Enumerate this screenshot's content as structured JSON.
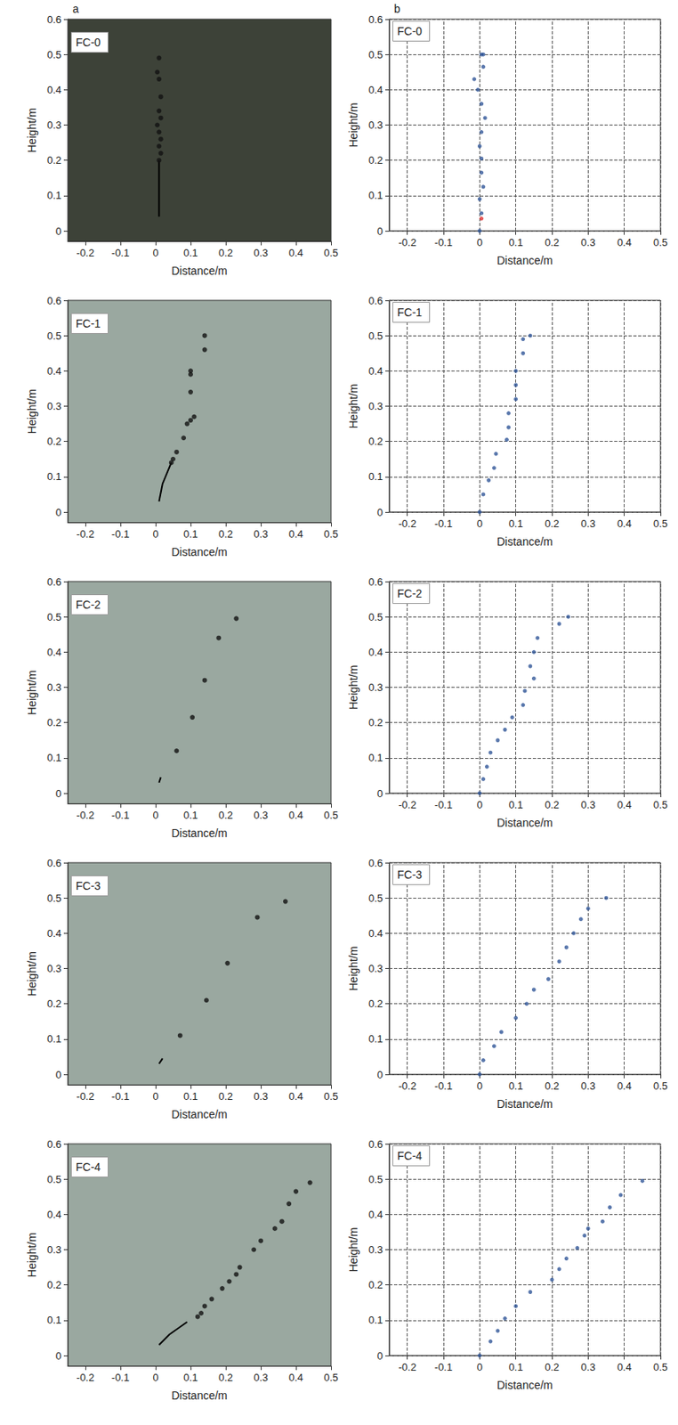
{
  "chart_data": [
    {
      "type": "scatter",
      "panel_label": "a",
      "title": "FC-0",
      "xlabel": "Distance/m",
      "ylabel": "Height/m",
      "xlim": [
        -0.25,
        0.5
      ],
      "xticks": [
        -0.2,
        -0.1,
        0,
        0.1,
        0.2,
        0.3,
        0.4,
        0.5
      ],
      "ylim": [
        -0.03,
        0.6
      ],
      "yticks": [
        0,
        0.1,
        0.2,
        0.3,
        0.4,
        0.5,
        0.6
      ],
      "grid": false,
      "series": [
        {
          "type": "line",
          "color": "#000000",
          "line_style": "solid",
          "x": [
            0.01,
            0.01,
            0.01
          ],
          "values": [
            0.04,
            0.12,
            0.2
          ]
        },
        {
          "type": "scatter",
          "color": "#111111",
          "marker": "circle",
          "x": [
            0.01,
            0.005,
            0.01,
            0.015,
            0.01,
            0.015,
            0.005,
            0.01,
            0.015,
            0.01,
            0.015,
            0.01
          ],
          "values": [
            0.49,
            0.45,
            0.43,
            0.38,
            0.34,
            0.32,
            0.3,
            0.28,
            0.26,
            0.24,
            0.22,
            0.2
          ]
        }
      ]
    },
    {
      "type": "scatter",
      "panel_label": "b",
      "title": "FC-0",
      "xlabel": "Distance/m",
      "ylabel": "Height/m",
      "xlim": [
        -0.25,
        0.5
      ],
      "xticks": [
        -0.2,
        -0.1,
        0,
        0.1,
        0.2,
        0.3,
        0.4,
        0.5
      ],
      "ylim": [
        0,
        0.6
      ],
      "yticks": [
        0,
        0.1,
        0.2,
        0.3,
        0.4,
        0.5,
        0.6
      ],
      "grid": true,
      "series": [
        {
          "type": "scatter",
          "color": "#2f5597",
          "marker": "circle",
          "x": [
            0,
            0.005,
            0,
            0.01,
            0.005,
            0.005,
            0,
            0.005,
            0.015,
            0.005,
            -0.005,
            -0.015,
            0.01,
            0.005,
            0.01
          ],
          "values": [
            0,
            0.05,
            0.09,
            0.125,
            0.165,
            0.205,
            0.24,
            0.28,
            0.32,
            0.36,
            0.4,
            0.43,
            0.465,
            0.5,
            0.5
          ]
        },
        {
          "type": "scatter",
          "color": "#e03030",
          "marker": "circle",
          "x": [
            0.005
          ],
          "values": [
            0.035
          ]
        }
      ]
    },
    {
      "type": "scatter",
      "title": "FC-1",
      "xlabel": "Distance/m",
      "ylabel": "Height/m",
      "xlim": [
        -0.25,
        0.5
      ],
      "xticks": [
        -0.2,
        -0.1,
        0,
        0.1,
        0.2,
        0.3,
        0.4,
        0.5
      ],
      "ylim": [
        -0.03,
        0.6
      ],
      "yticks": [
        0,
        0.1,
        0.2,
        0.3,
        0.4,
        0.5,
        0.6
      ],
      "grid": false,
      "series": [
        {
          "type": "line",
          "color": "#000000",
          "line_style": "solid",
          "x": [
            0.01,
            0.02,
            0.045
          ],
          "values": [
            0.03,
            0.08,
            0.14
          ]
        },
        {
          "type": "scatter",
          "color": "#111111",
          "marker": "circle",
          "x": [
            0.14,
            0.14,
            0.1,
            0.1,
            0.1,
            0.11,
            0.1,
            0.09,
            0.08,
            0.06,
            0.05,
            0.045
          ],
          "values": [
            0.5,
            0.46,
            0.4,
            0.39,
            0.34,
            0.27,
            0.26,
            0.25,
            0.21,
            0.17,
            0.15,
            0.14
          ]
        }
      ]
    },
    {
      "type": "scatter",
      "title": "FC-1",
      "xlabel": "Distance/m",
      "ylabel": "Height/m",
      "xlim": [
        -0.25,
        0.5
      ],
      "xticks": [
        -0.2,
        -0.1,
        0,
        0.1,
        0.2,
        0.3,
        0.4,
        0.5
      ],
      "ylim": [
        0,
        0.6
      ],
      "yticks": [
        0,
        0.1,
        0.2,
        0.3,
        0.4,
        0.5,
        0.6
      ],
      "grid": true,
      "series": [
        {
          "type": "scatter",
          "color": "#2f5597",
          "marker": "circle",
          "x": [
            0,
            0.01,
            0.025,
            0.04,
            0.045,
            0.075,
            0.08,
            0.08,
            0.1,
            0.1,
            0.1,
            0.12,
            0.12,
            0.14
          ],
          "values": [
            0,
            0.05,
            0.09,
            0.125,
            0.165,
            0.205,
            0.24,
            0.28,
            0.32,
            0.36,
            0.4,
            0.45,
            0.49,
            0.5
          ]
        }
      ]
    },
    {
      "type": "scatter",
      "title": "FC-2",
      "xlabel": "Distance/m",
      "ylabel": "Height/m",
      "xlim": [
        -0.25,
        0.5
      ],
      "xticks": [
        -0.2,
        -0.1,
        0,
        0.1,
        0.2,
        0.3,
        0.4,
        0.5
      ],
      "ylim": [
        -0.03,
        0.6
      ],
      "yticks": [
        0,
        0.1,
        0.2,
        0.3,
        0.4,
        0.5,
        0.6
      ],
      "grid": false,
      "series": [
        {
          "type": "line",
          "color": "#000000",
          "line_style": "solid",
          "x": [
            0.01,
            0.015
          ],
          "values": [
            0.03,
            0.045
          ]
        },
        {
          "type": "scatter",
          "color": "#111111",
          "marker": "circle",
          "x": [
            0.23,
            0.18,
            0.14,
            0.105,
            0.06
          ],
          "values": [
            0.495,
            0.44,
            0.32,
            0.215,
            0.12
          ]
        }
      ]
    },
    {
      "type": "scatter",
      "title": "FC-2",
      "xlabel": "Distance/m",
      "ylabel": "Height/m",
      "xlim": [
        -0.25,
        0.5
      ],
      "xticks": [
        -0.2,
        -0.1,
        0,
        0.1,
        0.2,
        0.3,
        0.4,
        0.5
      ],
      "ylim": [
        0,
        0.6
      ],
      "yticks": [
        0,
        0.1,
        0.2,
        0.3,
        0.4,
        0.5,
        0.6
      ],
      "grid": true,
      "series": [
        {
          "type": "scatter",
          "color": "#2f5597",
          "marker": "circle",
          "x": [
            0,
            0.01,
            0.02,
            0.03,
            0.05,
            0.07,
            0.09,
            0.12,
            0.125,
            0.15,
            0.14,
            0.15,
            0.16,
            0.22,
            0.245
          ],
          "values": [
            0,
            0.04,
            0.075,
            0.115,
            0.15,
            0.18,
            0.215,
            0.25,
            0.29,
            0.325,
            0.36,
            0.4,
            0.44,
            0.48,
            0.5
          ]
        }
      ]
    },
    {
      "type": "scatter",
      "title": "FC-3",
      "xlabel": "Distance/m",
      "ylabel": "Height/m",
      "xlim": [
        -0.25,
        0.5
      ],
      "xticks": [
        -0.2,
        -0.1,
        0,
        0.1,
        0.2,
        0.3,
        0.4,
        0.5
      ],
      "ylim": [
        -0.03,
        0.6
      ],
      "yticks": [
        0,
        0.1,
        0.2,
        0.3,
        0.4,
        0.5,
        0.6
      ],
      "grid": false,
      "series": [
        {
          "type": "line",
          "color": "#000000",
          "line_style": "solid",
          "x": [
            0.01,
            0.02
          ],
          "values": [
            0.03,
            0.045
          ]
        },
        {
          "type": "scatter",
          "color": "#111111",
          "marker": "circle",
          "x": [
            0.37,
            0.29,
            0.205,
            0.145,
            0.07
          ],
          "values": [
            0.49,
            0.445,
            0.315,
            0.21,
            0.11
          ]
        }
      ]
    },
    {
      "type": "scatter",
      "title": "FC-3",
      "xlabel": "Distance/m",
      "ylabel": "Height/m",
      "xlim": [
        -0.25,
        0.5
      ],
      "xticks": [
        -0.2,
        -0.1,
        0,
        0.1,
        0.2,
        0.3,
        0.4,
        0.5
      ],
      "ylim": [
        0,
        0.6
      ],
      "yticks": [
        0,
        0.1,
        0.2,
        0.3,
        0.4,
        0.5,
        0.6
      ],
      "grid": true,
      "series": [
        {
          "type": "scatter",
          "color": "#2f5597",
          "marker": "circle",
          "x": [
            0,
            0.01,
            0.04,
            0.06,
            0.1,
            0.13,
            0.15,
            0.19,
            0.22,
            0.24,
            0.26,
            0.28,
            0.3,
            0.35
          ],
          "values": [
            0,
            0.04,
            0.08,
            0.12,
            0.16,
            0.2,
            0.24,
            0.27,
            0.32,
            0.36,
            0.4,
            0.44,
            0.47,
            0.5
          ]
        }
      ]
    },
    {
      "type": "scatter",
      "title": "FC-4",
      "xlabel": "Distance/m",
      "ylabel": "Height/m",
      "xlim": [
        -0.25,
        0.5
      ],
      "xticks": [
        -0.2,
        -0.1,
        0,
        0.1,
        0.2,
        0.3,
        0.4,
        0.5
      ],
      "ylim": [
        -0.03,
        0.6
      ],
      "yticks": [
        0,
        0.1,
        0.2,
        0.3,
        0.4,
        0.5,
        0.6
      ],
      "grid": false,
      "series": [
        {
          "type": "line",
          "color": "#000000",
          "line_style": "solid",
          "x": [
            0.01,
            0.04,
            0.09
          ],
          "values": [
            0.03,
            0.06,
            0.095
          ]
        },
        {
          "type": "scatter",
          "color": "#111111",
          "marker": "circle",
          "x": [
            0.44,
            0.4,
            0.38,
            0.36,
            0.34,
            0.3,
            0.28,
            0.24,
            0.23,
            0.21,
            0.19,
            0.16,
            0.14,
            0.13,
            0.12
          ],
          "values": [
            0.49,
            0.465,
            0.43,
            0.38,
            0.36,
            0.325,
            0.3,
            0.25,
            0.23,
            0.21,
            0.19,
            0.16,
            0.14,
            0.12,
            0.11
          ]
        }
      ]
    },
    {
      "type": "scatter",
      "title": "FC-4",
      "xlabel": "Distance/m",
      "ylabel": "Height/m",
      "xlim": [
        -0.25,
        0.5
      ],
      "xticks": [
        -0.2,
        -0.1,
        0,
        0.1,
        0.2,
        0.3,
        0.4,
        0.5
      ],
      "ylim": [
        0,
        0.6
      ],
      "yticks": [
        0,
        0.1,
        0.2,
        0.3,
        0.4,
        0.5,
        0.6
      ],
      "grid": true,
      "series": [
        {
          "type": "scatter",
          "color": "#2f5597",
          "marker": "circle",
          "x": [
            0,
            0.03,
            0.05,
            0.07,
            0.1,
            0.14,
            0.2,
            0.22,
            0.24,
            0.27,
            0.29,
            0.3,
            0.34,
            0.36,
            0.39,
            0.45
          ],
          "values": [
            0,
            0.04,
            0.07,
            0.105,
            0.14,
            0.18,
            0.215,
            0.245,
            0.275,
            0.305,
            0.34,
            0.36,
            0.38,
            0.42,
            0.455,
            0.495
          ]
        }
      ]
    }
  ]
}
